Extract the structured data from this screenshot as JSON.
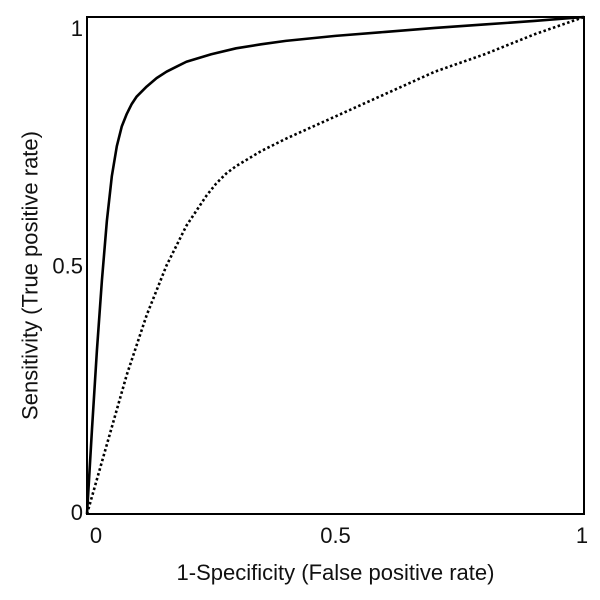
{
  "chart_data": {
    "type": "line",
    "title": "",
    "xlabel": "1-Specificity (False positive rate)",
    "ylabel": "Sensitivity (True positive rate)",
    "xlim": [
      0,
      1
    ],
    "ylim": [
      0,
      1
    ],
    "grid": false,
    "legend": "none",
    "x_ticks": [
      {
        "value": 0,
        "label": "0"
      },
      {
        "value": 0.5,
        "label": "0.5"
      },
      {
        "value": 1,
        "label": "1"
      }
    ],
    "y_ticks": [
      {
        "value": 0,
        "label": "0"
      },
      {
        "value": 0.5,
        "label": "0.5"
      },
      {
        "value": 1,
        "label": "1"
      }
    ],
    "series": [
      {
        "style": "solid",
        "color": "#000000",
        "x": [
          0,
          0.01,
          0.02,
          0.03,
          0.04,
          0.05,
          0.06,
          0.07,
          0.08,
          0.09,
          0.1,
          0.12,
          0.14,
          0.16,
          0.18,
          0.2,
          0.25,
          0.3,
          0.35,
          0.4,
          0.5,
          0.6,
          0.7,
          0.8,
          0.9,
          1.0
        ],
        "y": [
          0,
          0.17,
          0.33,
          0.47,
          0.59,
          0.68,
          0.74,
          0.78,
          0.805,
          0.825,
          0.84,
          0.86,
          0.877,
          0.89,
          0.9,
          0.91,
          0.925,
          0.937,
          0.945,
          0.952,
          0.962,
          0.97,
          0.978,
          0.985,
          0.992,
          1.0
        ]
      },
      {
        "style": "dotted",
        "color": "#000000",
        "x": [
          0,
          0.02,
          0.04,
          0.06,
          0.08,
          0.1,
          0.12,
          0.14,
          0.16,
          0.18,
          0.2,
          0.22,
          0.24,
          0.26,
          0.28,
          0.3,
          0.35,
          0.4,
          0.5,
          0.6,
          0.7,
          0.8,
          0.9,
          1.0
        ],
        "y": [
          0,
          0.07,
          0.14,
          0.21,
          0.28,
          0.34,
          0.4,
          0.45,
          0.5,
          0.54,
          0.58,
          0.61,
          0.64,
          0.665,
          0.685,
          0.7,
          0.73,
          0.755,
          0.8,
          0.845,
          0.89,
          0.925,
          0.965,
          1.0
        ]
      }
    ]
  }
}
